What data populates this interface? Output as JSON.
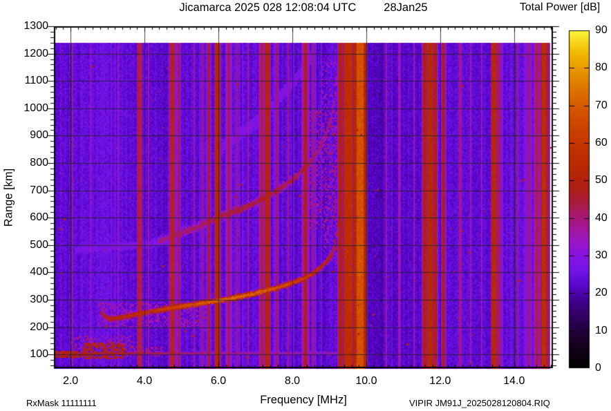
{
  "header": {
    "title": "Jicamarca 2025 028 12:08:04 UTC",
    "date": "28Jan25",
    "colorbar_title": "Total Power [dB]"
  },
  "footer": {
    "rx_mask": "RxMask 11111111",
    "xlabel": "Frequency [MHz]",
    "file_label": "VIPIR  JM91J_2025028120804.RIQ"
  },
  "axes": {
    "ylabel": "Range [km]",
    "x_ticks": [
      "2.0",
      "4.0",
      "6.0",
      "8.0",
      "10.0",
      "12.0",
      "14.0"
    ],
    "y_ticks": [
      "1300",
      "1200",
      "1100",
      "1000",
      "900",
      "800",
      "700",
      "600",
      "500",
      "400",
      "300",
      "200",
      "100"
    ],
    "cbar_ticks": [
      "90",
      "80",
      "70",
      "60",
      "50",
      "40",
      "30",
      "20",
      "10",
      "0"
    ]
  },
  "chart_data": {
    "type": "heatmap",
    "title": "Jicamarca 2025 028 12:08:04 UTC   28Jan25",
    "xlabel": "Frequency [MHz]",
    "ylabel": "Range [km]",
    "zlabel": "Total Power [dB]",
    "x_range": [
      1.55,
      15.05
    ],
    "x_data_max": 15.0,
    "y_range": [
      50,
      1300
    ],
    "y_data_max": 1240,
    "z_range": [
      0,
      90
    ],
    "x_major_tick": 2.0,
    "x_minor_tick": 0.2,
    "y_major_tick": 100,
    "y_minor_tick": 20,
    "grid": true,
    "legend_position": "right-colorbar",
    "colormap_stops": [
      [
        0,
        "#000000"
      ],
      [
        6,
        "#15001d"
      ],
      [
        12,
        "#2a0050"
      ],
      [
        18,
        "#41008e"
      ],
      [
        22,
        "#5906cd"
      ],
      [
        26,
        "#7315e8"
      ],
      [
        30,
        "#8712e1"
      ],
      [
        34,
        "#9c16c2"
      ],
      [
        38,
        "#a41591"
      ],
      [
        41,
        "#a6186a"
      ],
      [
        44,
        "#a81c3e"
      ],
      [
        48,
        "#ae1d15"
      ],
      [
        52,
        "#b52505"
      ],
      [
        60,
        "#c53500"
      ],
      [
        68,
        "#d25000"
      ],
      [
        76,
        "#e17d00"
      ],
      [
        84,
        "#f2b800"
      ],
      [
        90,
        "#fdf53c"
      ]
    ],
    "background_db": 23.5,
    "noise_db": 2.1,
    "column_stripe_db": 2.6,
    "tint_regions": [
      {
        "f0": 10.05,
        "f1": 11.45,
        "dv": -1.6
      },
      {
        "f0": 1.55,
        "f1": 2.25,
        "dv": -0.8
      },
      {
        "f0": 13.85,
        "f1": 14.35,
        "dv": 1.0
      },
      {
        "f0": 8.95,
        "f1": 9.45,
        "dv": 1.5
      }
    ],
    "rfi_bands": [
      {
        "f": 2.07,
        "w": 0.04,
        "p": 34
      },
      {
        "f": 2.55,
        "w": 0.04,
        "p": 32
      },
      {
        "f": 3.28,
        "w": 0.04,
        "p": 33
      },
      {
        "f": 3.88,
        "w": 0.05,
        "p": 54
      },
      {
        "f": 4.1,
        "w": 0.04,
        "p": 36
      },
      {
        "f": 4.76,
        "w": 0.08,
        "p": 52
      },
      {
        "f": 4.93,
        "w": 0.05,
        "p": 46
      },
      {
        "f": 5.35,
        "w": 0.04,
        "p": 36
      },
      {
        "f": 5.56,
        "w": 0.04,
        "p": 40
      },
      {
        "f": 5.74,
        "w": 0.05,
        "p": 44
      },
      {
        "f": 5.98,
        "w": 0.12,
        "p": 53
      },
      {
        "f": 6.28,
        "w": 0.06,
        "p": 47
      },
      {
        "f": 6.52,
        "w": 0.04,
        "p": 40
      },
      {
        "f": 6.8,
        "w": 0.04,
        "p": 36
      },
      {
        "f": 7.18,
        "w": 0.07,
        "p": 50
      },
      {
        "f": 7.33,
        "w": 0.08,
        "p": 52
      },
      {
        "f": 7.58,
        "w": 0.05,
        "p": 44
      },
      {
        "f": 7.9,
        "w": 0.04,
        "p": 38
      },
      {
        "f": 8.36,
        "w": 0.1,
        "p": 49
      },
      {
        "f": 8.57,
        "w": 0.05,
        "p": 41
      },
      {
        "f": 9.28,
        "w": 0.06,
        "p": 50
      },
      {
        "f": 9.5,
        "w": 0.22,
        "p": 56
      },
      {
        "f": 9.7,
        "w": 0.08,
        "p": 52
      },
      {
        "f": 9.84,
        "w": 0.18,
        "p": 68
      },
      {
        "f": 9.97,
        "w": 0.05,
        "p": 50
      },
      {
        "f": 10.55,
        "w": 0.05,
        "p": 37
      },
      {
        "f": 10.9,
        "w": 0.04,
        "p": 34
      },
      {
        "f": 11.3,
        "w": 0.04,
        "p": 35
      },
      {
        "f": 11.57,
        "w": 0.06,
        "p": 49
      },
      {
        "f": 11.72,
        "w": 0.12,
        "p": 54
      },
      {
        "f": 11.87,
        "w": 0.06,
        "p": 50
      },
      {
        "f": 12.09,
        "w": 0.06,
        "p": 47
      },
      {
        "f": 12.55,
        "w": 0.05,
        "p": 38
      },
      {
        "f": 12.82,
        "w": 0.04,
        "p": 36
      },
      {
        "f": 13.12,
        "w": 0.04,
        "p": 34
      },
      {
        "f": 13.47,
        "w": 0.12,
        "p": 54
      },
      {
        "f": 13.62,
        "w": 0.05,
        "p": 44
      },
      {
        "f": 14.1,
        "w": 0.05,
        "p": 38
      },
      {
        "f": 14.4,
        "w": 0.06,
        "p": 44
      },
      {
        "f": 14.62,
        "w": 0.06,
        "p": 50
      },
      {
        "f": 14.8,
        "w": 0.1,
        "p": 56
      },
      {
        "f": 14.93,
        "w": 0.05,
        "p": 48
      }
    ],
    "traces": [
      {
        "name": "F-trace first hop O-mode",
        "thickness_km": 13,
        "jitter_km": 3,
        "points": [
          [
            2.82,
            258,
            46
          ],
          [
            2.92,
            240,
            50
          ],
          [
            3.05,
            231,
            52
          ],
          [
            3.3,
            234,
            54
          ],
          [
            3.6,
            242,
            55
          ],
          [
            4.0,
            253,
            57
          ],
          [
            4.5,
            265,
            62
          ],
          [
            5.0,
            276,
            66
          ],
          [
            5.5,
            287,
            70
          ],
          [
            6.0,
            298,
            72
          ],
          [
            6.5,
            310,
            73
          ],
          [
            7.0,
            324,
            72
          ],
          [
            7.5,
            341,
            70
          ],
          [
            8.0,
            362,
            66
          ],
          [
            8.4,
            384,
            60
          ],
          [
            8.7,
            410,
            56
          ],
          [
            8.9,
            436,
            54
          ],
          [
            9.05,
            466,
            53
          ],
          [
            9.15,
            505,
            53
          ],
          [
            9.21,
            550,
            52
          ],
          [
            9.24,
            580,
            50
          ]
        ]
      },
      {
        "name": "F-trace X-mode branch",
        "thickness_km": 9,
        "jitter_km": 3,
        "points": [
          [
            8.55,
            395,
            44
          ],
          [
            8.85,
            425,
            45
          ],
          [
            9.05,
            455,
            46
          ],
          [
            9.2,
            490,
            47
          ],
          [
            9.3,
            535,
            47
          ],
          [
            9.35,
            578,
            46
          ]
        ]
      },
      {
        "name": "second hop 2F",
        "thickness_km": 17,
        "jitter_km": 7,
        "points": [
          [
            4.35,
            512,
            40
          ],
          [
            5.0,
            545,
            42
          ],
          [
            5.5,
            570,
            43
          ],
          [
            6.0,
            601,
            45
          ],
          [
            6.5,
            627,
            46
          ],
          [
            7.0,
            655,
            46
          ],
          [
            7.5,
            692,
            46
          ],
          [
            8.0,
            737,
            45
          ],
          [
            8.4,
            788,
            44
          ],
          [
            8.7,
            845,
            43
          ],
          [
            8.9,
            900,
            42
          ],
          [
            9.05,
            965,
            41
          ],
          [
            9.15,
            1040,
            40
          ],
          [
            9.21,
            1120,
            39
          ],
          [
            9.25,
            1200,
            38
          ]
        ]
      },
      {
        "name": "third hop faint",
        "thickness_km": 26,
        "jitter_km": 9,
        "points": [
          [
            5.9,
            835,
            29
          ],
          [
            6.5,
            895,
            30
          ],
          [
            7.0,
            950,
            30
          ],
          [
            7.6,
            1030,
            30
          ],
          [
            8.1,
            1110,
            29
          ],
          [
            8.5,
            1185,
            29
          ]
        ]
      },
      {
        "name": "faint low multiple arc",
        "thickness_km": 16,
        "jitter_km": 5,
        "points": [
          [
            2.1,
            482,
            28
          ],
          [
            3.0,
            492,
            29
          ],
          [
            4.0,
            503,
            29
          ],
          [
            4.7,
            514,
            28
          ]
        ]
      },
      {
        "name": "E-layer line 100km",
        "thickness_km": 6,
        "jitter_km": 2,
        "points": [
          [
            1.55,
            101,
            49
          ],
          [
            2.5,
            103,
            50
          ],
          [
            3.5,
            105,
            46
          ],
          [
            5.0,
            105,
            42
          ],
          [
            6.5,
            105,
            39
          ],
          [
            8.0,
            105,
            36
          ],
          [
            9.35,
            105,
            34
          ]
        ]
      }
    ],
    "clouds": [
      {
        "name": "E-wedge core",
        "f0": 1.55,
        "f1": 2.35,
        "r0": 88,
        "r1": 114,
        "p": 50,
        "density": 0.8
      },
      {
        "name": "E-wedge main",
        "f0": 2.35,
        "f1": 3.5,
        "r0": 84,
        "r1": 142,
        "p": 49,
        "density": 0.65
      },
      {
        "name": "E-wedge top haze",
        "f0": 2.0,
        "f1": 3.7,
        "r0": 120,
        "r1": 168,
        "p": 38,
        "density": 0.32
      },
      {
        "name": "E-wedge tail",
        "f0": 3.5,
        "f1": 4.5,
        "r0": 92,
        "r1": 128,
        "p": 39,
        "density": 0.3
      },
      {
        "name": "F-base diffuse scatter",
        "f0": 2.75,
        "f1": 5.7,
        "r0": 198,
        "r1": 292,
        "p": 35,
        "density": 0.38
      },
      {
        "name": "spread-F cloud",
        "f0": 8.3,
        "f1": 9.45,
        "r0": 560,
        "r1": 1000,
        "p": 37,
        "density": 0.33
      },
      {
        "name": "spread-F upper haze",
        "f0": 8.75,
        "f1": 9.45,
        "r0": 1000,
        "r1": 1195,
        "p": 33,
        "density": 0.22
      },
      {
        "name": "asymptote spread",
        "f0": 8.85,
        "f1": 9.4,
        "r0": 430,
        "r1": 560,
        "p": 34,
        "density": 0.26
      }
    ],
    "speckles": {
      "count": 150,
      "p_min": 34,
      "p_max": 50
    }
  }
}
